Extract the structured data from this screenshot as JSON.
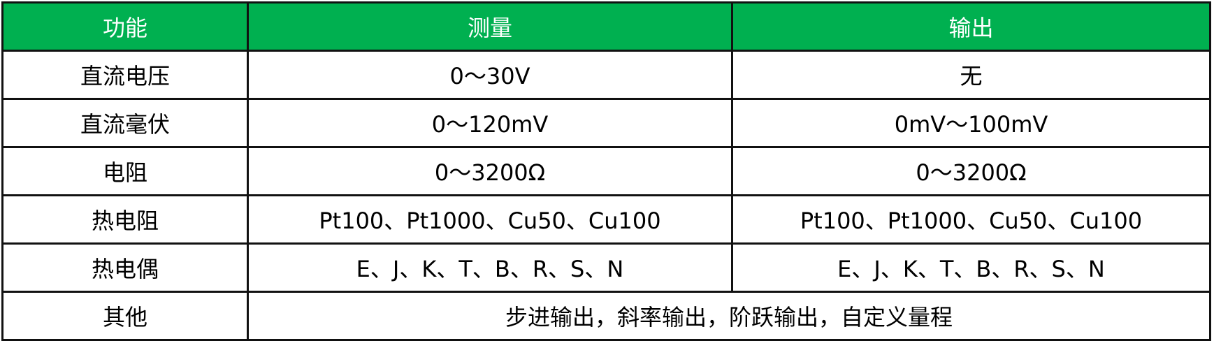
{
  "colors": {
    "header_bg": "#00b050",
    "header_text": "#ffffff",
    "border": "#111111"
  },
  "header": [
    "功能",
    "测量",
    "输出"
  ],
  "rows": [
    [
      "直流电压",
      "0～30V",
      "无"
    ],
    [
      "直流毫伏",
      "0～120mV",
      "0mV～100mV"
    ],
    [
      "电阻",
      "0～3200Ω",
      "0～3200Ω"
    ],
    [
      "热电阻",
      "Pt100、Pt1000、Cu50、Cu100",
      "Pt100、Pt1000、Cu50、Cu100"
    ],
    [
      "热电偶",
      "E、J、K、T、B、R、S、N",
      "E、J、K、T、B、R、S、N"
    ]
  ],
  "other": {
    "label": "其他",
    "value": "步进输出，斜率输出，阶跃输出，自定义量程"
  }
}
